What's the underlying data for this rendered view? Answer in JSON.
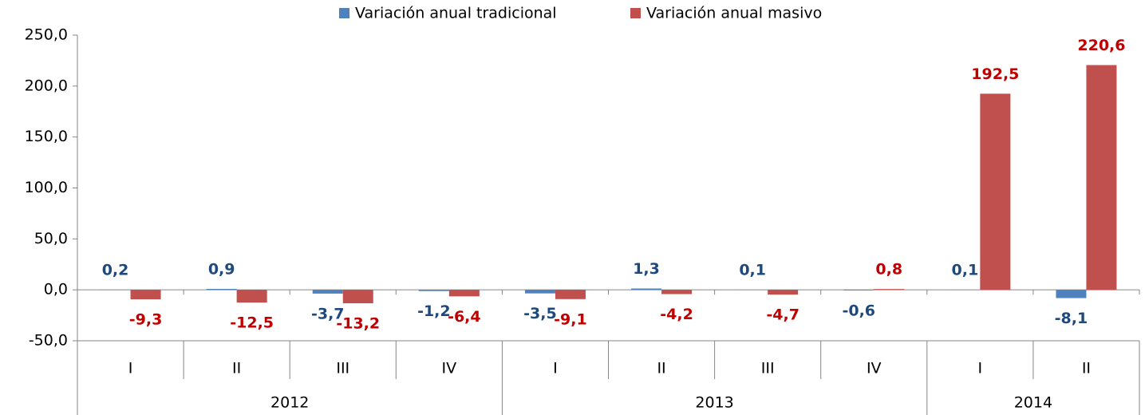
{
  "chart_data": {
    "type": "bar",
    "categories": [
      "I",
      "II",
      "III",
      "IV",
      "I",
      "II",
      "III",
      "IV",
      "I",
      "II"
    ],
    "groups": [
      {
        "label": "2012",
        "span": 4
      },
      {
        "label": "2013",
        "span": 4
      },
      {
        "label": "2014",
        "span": 2
      }
    ],
    "series": [
      {
        "name": "Variación anual tradicional",
        "color": "#4f81bd",
        "label_color": "#1f497d",
        "values": [
          0.2,
          0.9,
          -3.7,
          -1.2,
          -3.5,
          1.3,
          0.1,
          -0.6,
          0.1,
          -8.1
        ],
        "value_labels": [
          "0,2",
          "0,9",
          "-3,7",
          "-1,2",
          "-3,5",
          "1,3",
          "0,1",
          "-0,6",
          "0,1",
          "-8,1"
        ]
      },
      {
        "name": "Variación anual masivo",
        "color": "#c0504d",
        "label_color": "#c00000",
        "values": [
          -9.3,
          -12.5,
          -13.2,
          -6.4,
          -9.1,
          -4.2,
          -4.7,
          0.8,
          192.5,
          220.6
        ],
        "value_labels": [
          "-9,3",
          "-12,5",
          "-13,2",
          "-6,4",
          "-9,1",
          "-4,2",
          "-4,7",
          "0,8",
          "192,5",
          "220,6"
        ]
      }
    ],
    "ylim": [
      -50,
      250
    ],
    "yticks": [
      {
        "value": -50,
        "label": "-50,0"
      },
      {
        "value": 0,
        "label": "0,0"
      },
      {
        "value": 50,
        "label": "50,0"
      },
      {
        "value": 100,
        "label": "100,0"
      },
      {
        "value": 150,
        "label": "150,0"
      },
      {
        "value": 200,
        "label": "200,0"
      },
      {
        "value": 250,
        "label": "250,0"
      }
    ],
    "grid": false,
    "legend": "top"
  }
}
